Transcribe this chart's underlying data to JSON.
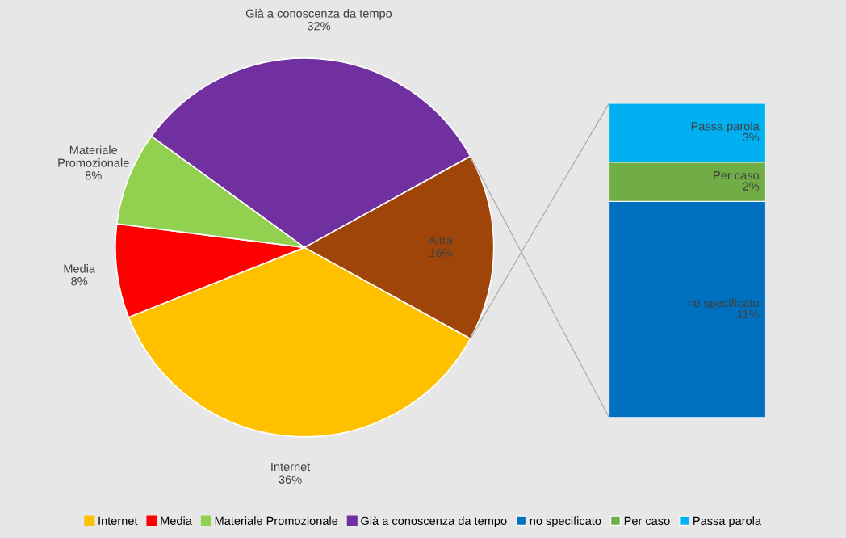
{
  "chart_data": [
    {
      "type": "pie",
      "categories": [
        "Internet",
        "Media",
        "Materiale\nPromozionale",
        "Già a conoscenza da tempo",
        "Altra"
      ],
      "values": [
        36,
        8,
        8,
        32,
        16
      ],
      "colors": [
        "#ffc000",
        "#ff0000",
        "#92d050",
        "#7030a0",
        "#a0450a"
      ],
      "value_labels": [
        "36%",
        "8%",
        "8%",
        "32%",
        "16%"
      ],
      "legend": "bottom"
    },
    {
      "type": "bar",
      "stacked": true,
      "categories": [
        null
      ],
      "series": [
        {
          "name": "no specificato",
          "color": "#0070c0",
          "values": [
            11
          ],
          "value_labels": [
            "11%"
          ]
        },
        {
          "name": "Per caso",
          "color": "#70ad47",
          "values": [
            2
          ],
          "value_labels": [
            "2%"
          ]
        },
        {
          "name": "Passa parola",
          "color": "#00b0f0",
          "values": [
            3
          ],
          "value_labels": [
            "3%"
          ]
        }
      ],
      "legend": "bottom"
    }
  ]
}
